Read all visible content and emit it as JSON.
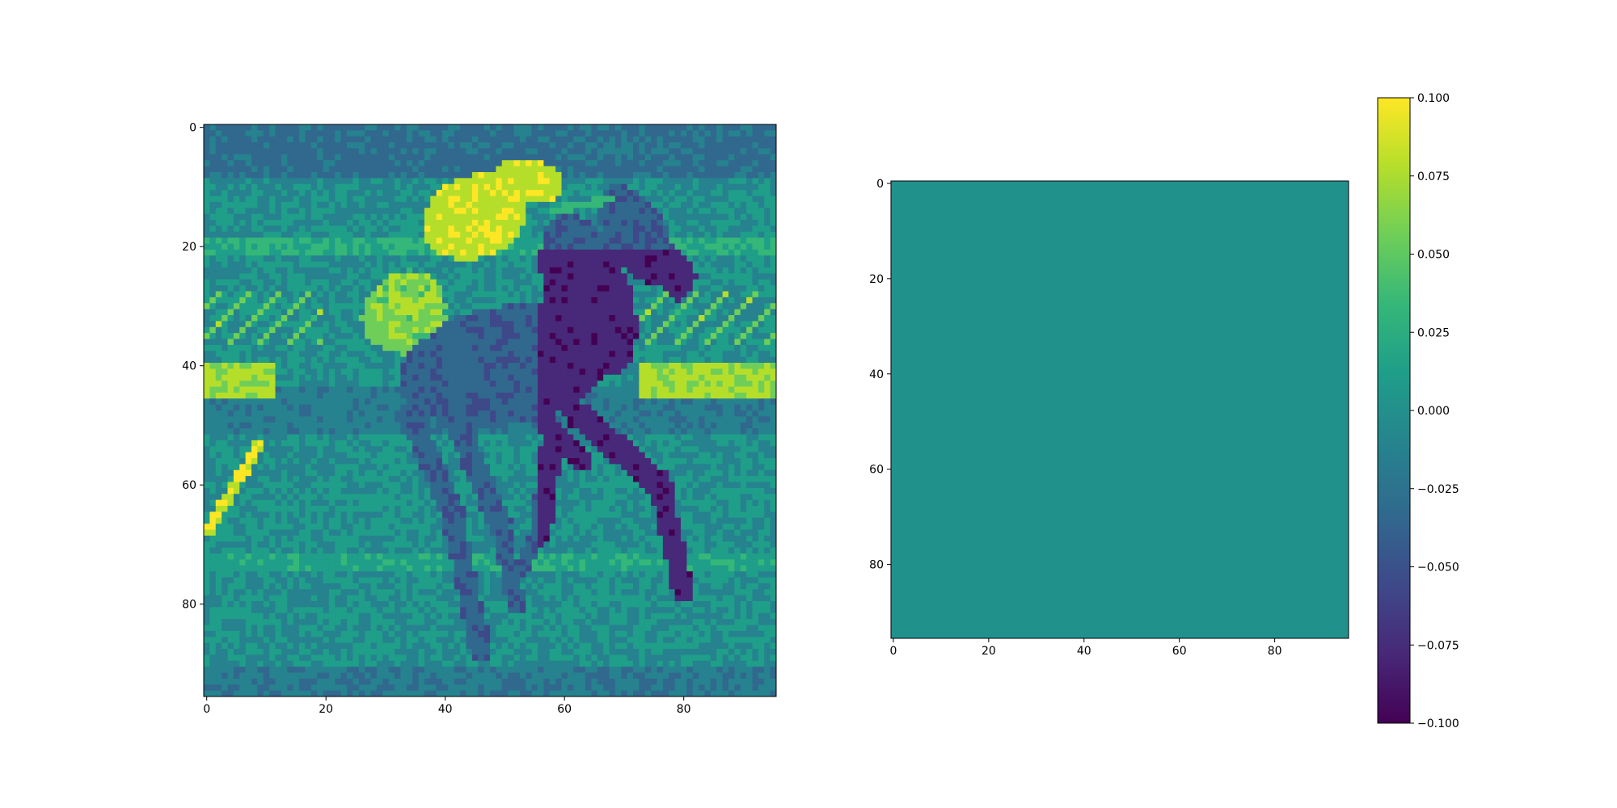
{
  "figure": {
    "background": "#ffffff"
  },
  "chart_data": [
    {
      "type": "heatmap",
      "title": "",
      "xlabel": "",
      "ylabel": "",
      "image_shape": [
        96,
        96
      ],
      "xlim": [
        -0.5,
        95.5
      ],
      "ylim": [
        95.5,
        -0.5
      ],
      "x_ticks": [
        0,
        20,
        40,
        60,
        80
      ],
      "y_ticks": [
        0,
        20,
        40,
        60,
        80
      ],
      "x_tick_labels": [
        "0",
        "20",
        "40",
        "60",
        "80"
      ],
      "y_tick_labels": [
        "0",
        "20",
        "40",
        "60",
        "80"
      ],
      "colormap": "viridis",
      "content": "grayscale photo of a jockey riding a galloping racehorse, rendered with viridis colormap",
      "grid": false
    },
    {
      "type": "heatmap",
      "title": "",
      "xlabel": "",
      "ylabel": "",
      "image_shape": [
        96,
        96
      ],
      "xlim": [
        -0.5,
        95.5
      ],
      "ylim": [
        95.5,
        -0.5
      ],
      "x_ticks": [
        0,
        20,
        40,
        60,
        80
      ],
      "y_ticks": [
        0,
        20,
        40,
        60,
        80
      ],
      "x_tick_labels": [
        "0",
        "20",
        "40",
        "60",
        "80"
      ],
      "y_tick_labels": [
        "0",
        "20",
        "40",
        "60",
        "80"
      ],
      "uniform_value": 0.0,
      "fill_color": "#21918c",
      "colormap": "viridis",
      "grid": false,
      "colorbar": {
        "range": [
          -0.1,
          0.1
        ],
        "ticks": [
          0.1,
          0.075,
          0.05,
          0.025,
          0.0,
          -0.025,
          -0.05,
          -0.075,
          -0.1
        ],
        "tick_labels": [
          "0.100",
          "0.075",
          "0.050",
          "0.025",
          "0.000",
          "−0.025",
          "−0.050",
          "−0.075",
          "−0.100"
        ]
      }
    }
  ],
  "colors": {
    "viridis_stops": [
      "#440154",
      "#482878",
      "#3e4989",
      "#31688e",
      "#26828e",
      "#1f9e89",
      "#35b779",
      "#6ece58",
      "#b5de2b",
      "#fde725"
    ]
  }
}
